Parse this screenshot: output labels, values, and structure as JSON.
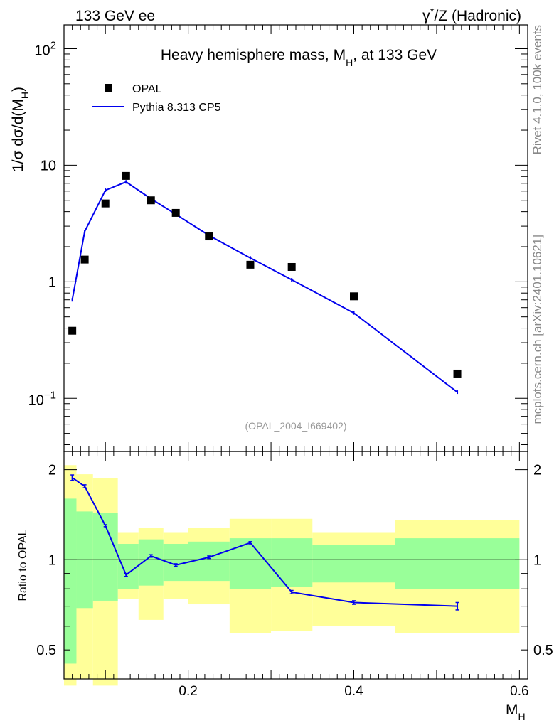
{
  "header": {
    "left": "133 GeV ee",
    "right_prefix": "γ",
    "right_sup": "*",
    "right_suffix": "/Z (Hadronic)"
  },
  "chart_data": {
    "type": "scatter",
    "title": "Heavy hemisphere mass, M",
    "title_sub": "H",
    "title_suffix": ", at 133 GeV",
    "analysis_id": "(OPAL_2004_I669402)",
    "xlabel": "M",
    "xlabel_sub": "H",
    "ylabel": "1/σ  dσ/d(M",
    "ylabel_sub": "H",
    "ylabel_close": ")",
    "ratio_ylabel": "Ratio to OPAL",
    "xlim": [
      0.05,
      0.61
    ],
    "ylim": [
      0.035,
      160
    ],
    "ratio_ylim": [
      0.4,
      2.3
    ],
    "x_ticks": [
      0.2,
      0.4,
      0.6
    ],
    "x_tick_labels": [
      "0.2",
      "0.4",
      "0.6"
    ],
    "y_ticks": [
      {
        "value": 0.1,
        "base": "10",
        "exp": "−1"
      },
      {
        "value": 1,
        "base": "1",
        "exp": ""
      },
      {
        "value": 10,
        "base": "10",
        "exp": ""
      },
      {
        "value": 100,
        "base": "10",
        "exp": "2"
      }
    ],
    "ratio_ticks": [
      0.5,
      1,
      2
    ],
    "ratio_tick_labels": [
      "0.5",
      "1",
      "2"
    ],
    "legend": {
      "position": "top-left",
      "entries": [
        {
          "label": "OPAL",
          "style": "marker"
        },
        {
          "label": "Pythia 8.313 CP5",
          "style": "line"
        }
      ]
    },
    "side_labels": {
      "rivet": "Rivet 4.1.0,  100k events",
      "mcplots": "mcplots.cern.ch [arXiv:2401.10621]"
    },
    "series": [
      {
        "name": "OPAL",
        "x": [
          0.06,
          0.075,
          0.1,
          0.125,
          0.155,
          0.185,
          0.225,
          0.275,
          0.325,
          0.4,
          0.525
        ],
        "y": [
          0.38,
          1.55,
          4.7,
          8.1,
          5.0,
          3.9,
          2.45,
          1.4,
          1.34,
          0.75,
          0.163
        ]
      },
      {
        "name": "Pythia 8.313 CP5",
        "x": [
          0.06,
          0.075,
          0.1,
          0.125,
          0.155,
          0.185,
          0.225,
          0.275,
          0.325,
          0.4,
          0.525
        ],
        "y": [
          0.7,
          2.7,
          6.1,
          7.2,
          5.15,
          3.8,
          2.5,
          1.6,
          1.04,
          0.54,
          0.113
        ]
      }
    ],
    "ratio": {
      "x": [
        0.06,
        0.075,
        0.1,
        0.125,
        0.155,
        0.185,
        0.225,
        0.275,
        0.325,
        0.4,
        0.525
      ],
      "values": [
        1.88,
        1.76,
        1.3,
        0.89,
        1.03,
        0.96,
        1.02,
        1.14,
        0.78,
        0.72,
        0.7
      ],
      "errors": [
        0.04,
        0.02,
        0.01,
        0.01,
        0.01,
        0.01,
        0.01,
        0.01,
        0.01,
        0.01,
        0.02
      ]
    },
    "bands": {
      "edges": [
        0.05,
        0.065,
        0.085,
        0.115,
        0.14,
        0.17,
        0.2,
        0.25,
        0.3,
        0.35,
        0.45,
        0.6
      ],
      "inner": [
        [
          0.45,
          1.6
        ],
        [
          0.69,
          1.45
        ],
        [
          0.73,
          1.43
        ],
        [
          0.8,
          1.13
        ],
        [
          0.82,
          1.17
        ],
        [
          0.85,
          1.13
        ],
        [
          0.85,
          1.15
        ],
        [
          0.8,
          1.18
        ],
        [
          0.81,
          1.18
        ],
        [
          0.84,
          1.12
        ],
        [
          0.8,
          1.18
        ]
      ],
      "outer": [
        [
          0.38,
          2.07
        ],
        [
          0.4,
          1.93
        ],
        [
          0.38,
          1.87
        ],
        [
          0.74,
          1.23
        ],
        [
          0.63,
          1.28
        ],
        [
          0.74,
          1.23
        ],
        [
          0.71,
          1.28
        ],
        [
          0.57,
          1.37
        ],
        [
          0.58,
          1.37
        ],
        [
          0.6,
          1.23
        ],
        [
          0.57,
          1.36
        ]
      ]
    }
  },
  "colors": {
    "data_marker": "#000000",
    "mc_line": "#0000ee",
    "band_inner": "#99ff99",
    "band_outer": "#ffff99",
    "side_label": "#888888"
  }
}
